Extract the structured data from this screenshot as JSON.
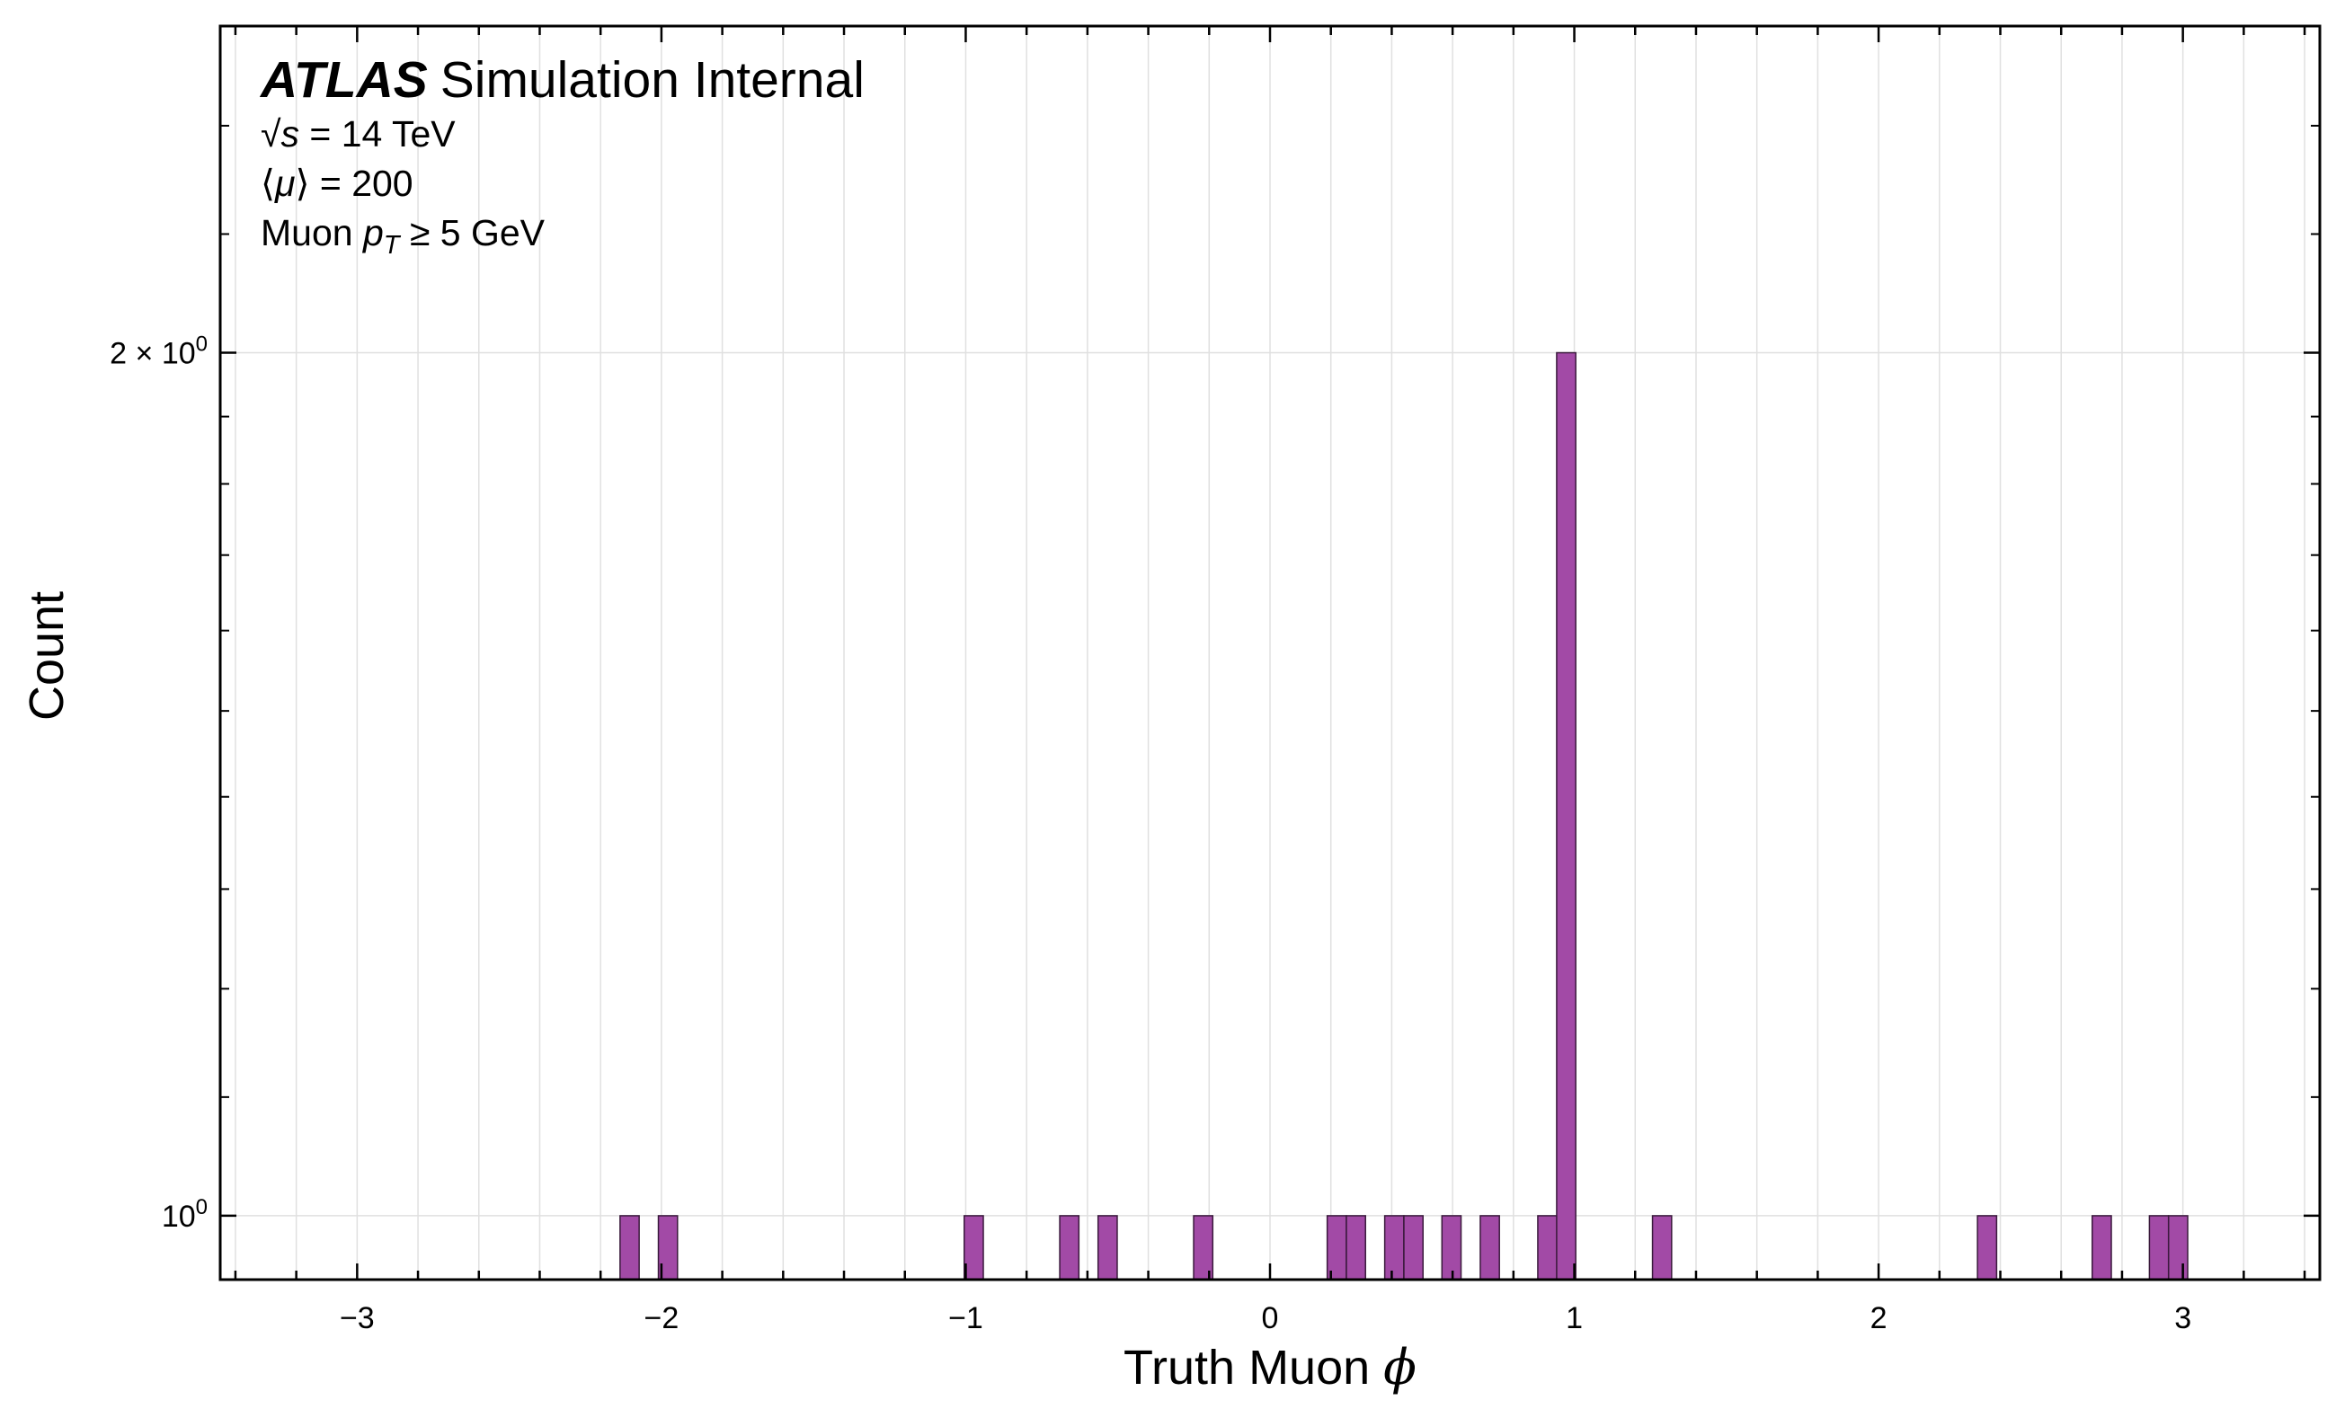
{
  "chart_data": {
    "type": "bar",
    "title": {
      "experiment": "ATLAS",
      "label": "Simulation Internal"
    },
    "annotations": [
      {
        "prefix": "√",
        "var": "s",
        "text": " = 14 TeV"
      },
      {
        "prefix": "⟨",
        "var": "μ",
        "text": "⟩ = 200"
      },
      {
        "prefix": "Muon ",
        "var": "p",
        "sub": "T",
        "text": " ≥ 5 GeV"
      }
    ],
    "xlabel": {
      "text": "Truth Muon ",
      "symbol": "ϕ"
    },
    "ylabel": "Count",
    "xlim": [
      -3.45,
      3.45
    ],
    "ylim": [
      0.95,
      2.6
    ],
    "yscale": "log",
    "x_ticks": [
      -3,
      -2,
      -1,
      0,
      1,
      2,
      3
    ],
    "x_tick_labels": [
      "−3",
      "−2",
      "−1",
      "0",
      "1",
      "2",
      "3"
    ],
    "y_ticks": [
      1,
      2
    ],
    "y_tick_labels": [
      {
        "mantissa": "",
        "base": "10",
        "exp": "0"
      },
      {
        "mantissa": "2 × ",
        "base": "10",
        "exp": "0"
      }
    ],
    "grid": true,
    "bin_width": 0.0628,
    "bars_left_edge": [
      -2.136,
      -2.01,
      -1.005,
      -0.691,
      -0.565,
      -0.251,
      0.188,
      0.251,
      0.377,
      0.44,
      0.565,
      0.691,
      0.88,
      0.942,
      1.257,
      2.325,
      2.702,
      2.89,
      2.953
    ],
    "values": [
      1,
      1,
      1,
      1,
      1,
      1,
      1,
      1,
      1,
      1,
      1,
      1,
      1,
      2,
      1,
      1,
      1,
      1,
      1
    ],
    "colors": {
      "bar_fill": "#a24aa6",
      "bar_edge": "#3a1a3c",
      "grid": "#e0e0e0",
      "axis": "#000000"
    }
  }
}
